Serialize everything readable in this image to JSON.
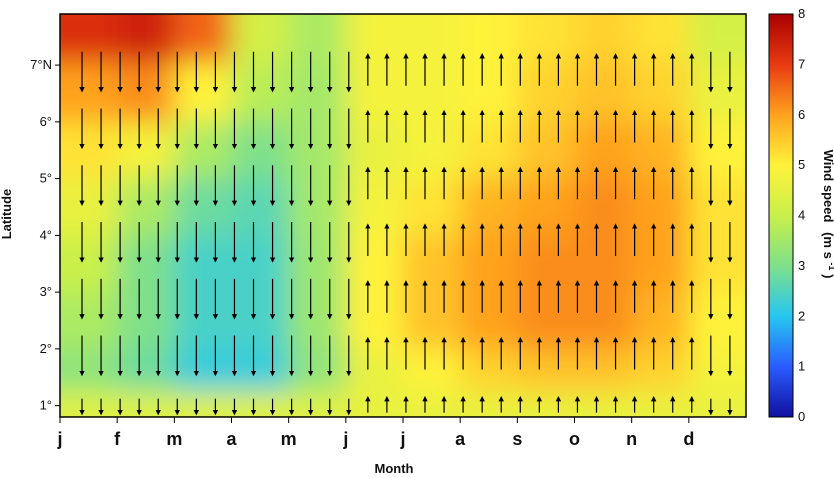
{
  "chart_data": {
    "type": "heatmap",
    "title": "",
    "xlabel": "Month",
    "ylabel": "Latitude",
    "x_categories": [
      "j",
      "f",
      "m",
      "a",
      "m",
      "j",
      "j",
      "a",
      "s",
      "o",
      "n",
      "d"
    ],
    "y_tick_labels": [
      "1°",
      "2°",
      "3°",
      "4°",
      "5°",
      "6°",
      "7°N"
    ],
    "y_ticks": [
      1,
      2,
      3,
      4,
      5,
      6,
      7
    ],
    "ylim": [
      0.8,
      7.9
    ],
    "colorbar": {
      "label": "Wind speed",
      "unit_label": "(m s",
      "unit_sup": "-1",
      "unit_close": ")",
      "ticks": [
        "0",
        "1",
        "2",
        "3",
        "4",
        "5",
        "6",
        "7",
        "8"
      ],
      "range": [
        0,
        8
      ],
      "colors": [
        "#1010a0",
        "#2a5cff",
        "#26c7f0",
        "#7fe08a",
        "#c9f04a",
        "#fff23a",
        "#ffa21e",
        "#e83a12",
        "#a80000"
      ]
    },
    "wind_speed_grid": {
      "latitudes": [
        7.6,
        6.5,
        5.5,
        4.5,
        3.5,
        2.5,
        1.5,
        1.0
      ],
      "months": [
        "jan",
        "feb",
        "mar",
        "apr",
        "may",
        "jun",
        "jul",
        "aug",
        "sep",
        "oct",
        "nov",
        "dec"
      ],
      "values": [
        [
          7.2,
          7.4,
          6.6,
          4.2,
          3.6,
          4.8,
          4.8,
          5.0,
          5.2,
          5.4,
          5.2,
          4.2
        ],
        [
          6.0,
          6.2,
          5.0,
          3.8,
          3.5,
          4.8,
          4.8,
          5.0,
          5.4,
          5.6,
          5.4,
          4.6
        ],
        [
          5.2,
          4.8,
          3.6,
          3.0,
          3.5,
          4.6,
          4.8,
          5.2,
          5.6,
          6.0,
          5.8,
          5.0
        ],
        [
          4.6,
          3.6,
          2.8,
          2.6,
          3.5,
          4.8,
          5.2,
          5.8,
          6.0,
          6.2,
          6.0,
          5.2
        ],
        [
          4.0,
          3.0,
          2.4,
          2.4,
          3.4,
          5.0,
          5.6,
          6.0,
          6.2,
          6.2,
          6.0,
          5.2
        ],
        [
          3.6,
          3.0,
          2.4,
          2.4,
          3.4,
          5.0,
          5.6,
          6.0,
          6.2,
          6.2,
          5.8,
          5.0
        ],
        [
          3.2,
          2.8,
          2.2,
          2.2,
          3.2,
          4.6,
          5.0,
          5.4,
          5.6,
          5.6,
          5.4,
          4.8
        ],
        [
          4.4,
          4.4,
          4.4,
          4.4,
          4.4,
          4.6,
          4.6,
          4.6,
          4.6,
          4.6,
          4.6,
          4.6
        ]
      ]
    },
    "wind_vectors": {
      "description_rows_latitude": [
        6.9,
        5.9,
        4.9,
        3.9,
        2.9,
        1.9,
        1.0
      ],
      "direction_by_month": {
        "jan": "south",
        "feb": "south",
        "mar": "south",
        "apr": "south",
        "may": "south",
        "jun": "north",
        "jul": "north",
        "aug": "north",
        "sep": "north",
        "oct": "north",
        "nov": "north",
        "dec": "south"
      }
    }
  }
}
